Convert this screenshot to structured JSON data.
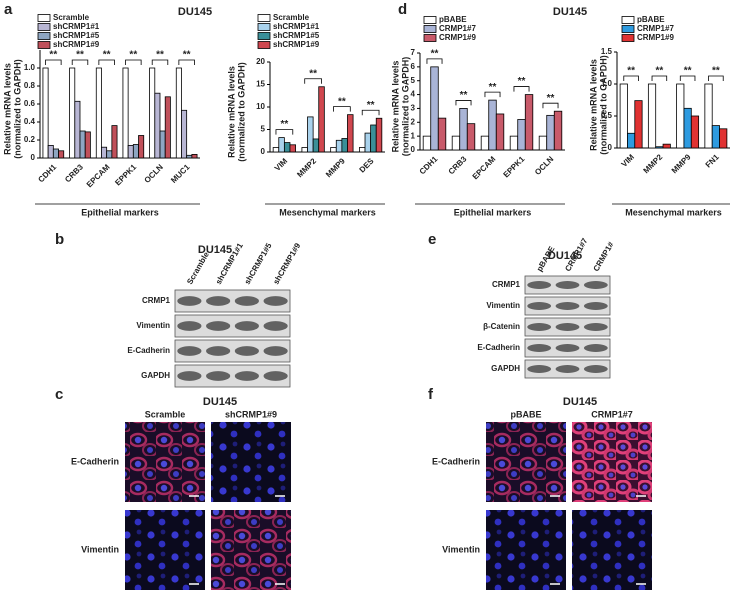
{
  "panels": [
    {
      "label": "a",
      "title": "DU145"
    },
    {
      "label": "b",
      "title": "DU145"
    },
    {
      "label": "c",
      "title": "DU145"
    },
    {
      "label": "d",
      "title": "DU145"
    },
    {
      "label": "e",
      "title": "DU145"
    },
    {
      "label": "f",
      "title": "DU145"
    }
  ],
  "chart_data": [
    {
      "type": "bar",
      "y_label": [
        "Relative mRNA levels",
        "(normalized to GAPDH)"
      ],
      "x_label": "Epithelial markers",
      "categories": [
        "CDH1",
        "CRB3",
        "EPCAM",
        "EPPK1",
        "OCLN",
        "MUC1"
      ],
      "series": [
        {
          "name": "Scramble",
          "color": "#ffffff",
          "values": [
            1,
            1,
            1,
            1,
            1,
            1
          ]
        },
        {
          "name": "shCRMP1#1",
          "color": "#b8b6d4",
          "values": [
            0.14,
            0.63,
            0.12,
            0.14,
            0.72,
            0.53
          ]
        },
        {
          "name": "shCRMP1#5",
          "color": "#8ea6c2",
          "values": [
            0.1,
            0.3,
            0.08,
            0.15,
            0.3,
            0.03
          ]
        },
        {
          "name": "shCRMP1#9",
          "color": "#c0505a",
          "values": [
            0.08,
            0.29,
            0.36,
            0.25,
            0.68,
            0.04
          ]
        }
      ],
      "significance": [
        "**",
        "**",
        "**",
        "**",
        "**",
        "**"
      ],
      "ylim": [
        0,
        1.2
      ],
      "yticks": [
        0,
        0.2,
        0.4,
        0.6,
        0.8,
        {
          "value": 1,
          "label": "1.0"
        }
      ]
    },
    {
      "type": "bar",
      "y_label": [
        "Relative mRNA levels",
        "(normalized to GAPDH)"
      ],
      "x_label": "Mesenchymal  markers",
      "categories": [
        "VIM",
        "MMP2",
        "MMP9",
        "DES"
      ],
      "series": [
        {
          "name": "Scramble",
          "color": "#ffffff",
          "values": [
            1,
            1,
            1,
            1
          ]
        },
        {
          "name": "shCRMP1#1",
          "color": "#a9d2ec",
          "values": [
            3.2,
            7.8,
            2.6,
            4.2
          ]
        },
        {
          "name": "shCRMP1#5",
          "color": "#3a8f98",
          "values": [
            2.1,
            2.9,
            3.0,
            6.0
          ]
        },
        {
          "name": "shCRMP1#9",
          "color": "#d0474f",
          "values": [
            1.6,
            14.5,
            8.3,
            7.5
          ]
        }
      ],
      "significance": [
        "**",
        "**",
        "**",
        "**"
      ],
      "ylim": [
        0,
        20
      ],
      "yticks": [
        0,
        5,
        10,
        15,
        20
      ]
    },
    {
      "type": "bar",
      "y_label": [
        "Relative mRNA levels",
        "(normalized to GAPDH)"
      ],
      "x_label": "Epithelial markers",
      "categories": [
        "CDH1",
        "CRB3",
        "EPCAM",
        "EPPK1",
        "OCLN"
      ],
      "series": [
        {
          "name": "pBABE",
          "color": "#ffffff",
          "values": [
            1,
            1,
            1,
            1,
            1
          ]
        },
        {
          "name": "CRMP1#7",
          "color": "#a9b4d6",
          "values": [
            6.0,
            3.0,
            3.6,
            2.2,
            2.5
          ]
        },
        {
          "name": "CRMP1#9",
          "color": "#c85a6a",
          "values": [
            2.3,
            1.9,
            2.6,
            4.0,
            2.8
          ]
        }
      ],
      "significance": [
        "**",
        "**",
        "**",
        "**",
        "**"
      ],
      "ylim": [
        0,
        7
      ],
      "yticks": [
        0,
        1,
        2,
        3,
        4,
        5,
        6,
        7
      ]
    },
    {
      "type": "bar",
      "y_label": [
        "Relative mRNA levels",
        "(normalized to GAPDH)"
      ],
      "x_label": "Mesenchymal markers",
      "categories": [
        "VIM",
        "MMP2",
        "MMP9",
        "FN1"
      ],
      "series": [
        {
          "name": "pBABE",
          "color": "#ffffff",
          "values": [
            1,
            1,
            1,
            1
          ]
        },
        {
          "name": "CRMP1#7",
          "color": "#2e9be0",
          "values": [
            0.23,
            0.02,
            0.62,
            0.35
          ]
        },
        {
          "name": "CRMP1#9",
          "color": "#e03232",
          "values": [
            0.74,
            0.06,
            0.5,
            0.3
          ]
        }
      ],
      "significance": [
        "**",
        "**",
        "**",
        "**"
      ],
      "ylim": [
        0,
        1.5
      ],
      "yticks": [
        0,
        0.5,
        {
          "value": 1,
          "label": "1.0"
        },
        1.5
      ]
    }
  ],
  "blot_b": {
    "lanes": [
      "Scramble",
      "shCRMP1#1",
      "shCRMP1#5",
      "shCRMP1#9"
    ],
    "rows": [
      "CRMP1",
      "Vimentin",
      "E-Cadherin",
      "GAPDH"
    ]
  },
  "blot_e": {
    "lanes": [
      "pBABE",
      "CRMP1#7",
      "CRMP1#"
    ],
    "rows": [
      "CRMP1",
      "Vimentin",
      "β-Catenin",
      "E-Cadherin",
      "GAPDH"
    ]
  },
  "images_c": {
    "columns": [
      "Scramble",
      "shCRMP1#9"
    ],
    "rows": [
      "E-Cadherin",
      "Vimentin"
    ]
  },
  "images_f": {
    "columns": [
      "pBABE",
      "CRMP1#7"
    ],
    "rows": [
      "E-Cadherin",
      "Vimentin"
    ]
  }
}
